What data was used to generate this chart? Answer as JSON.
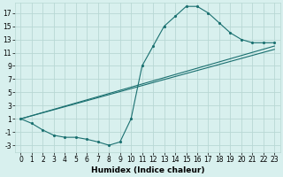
{
  "title": "",
  "xlabel": "Humidex (Indice chaleur)",
  "bg_color": "#d8f0ee",
  "grid_color": "#b8d8d4",
  "line_color": "#1a7070",
  "xlim": [
    -0.5,
    23.5
  ],
  "ylim": [
    -4,
    18.5
  ],
  "xticks": [
    0,
    1,
    2,
    3,
    4,
    5,
    6,
    7,
    8,
    9,
    10,
    11,
    12,
    13,
    14,
    15,
    16,
    17,
    18,
    19,
    20,
    21,
    22,
    23
  ],
  "yticks": [
    -3,
    -1,
    1,
    3,
    5,
    7,
    9,
    11,
    13,
    15,
    17
  ],
  "line1_x": [
    0,
    1,
    2,
    3,
    4,
    5,
    6,
    7,
    8,
    9,
    10,
    11,
    12,
    13,
    14,
    15,
    16,
    17,
    18,
    19,
    20,
    21,
    22,
    23
  ],
  "line1_y": [
    1,
    0.3,
    -0.7,
    -1.5,
    -1.8,
    -1.8,
    -2.1,
    -2.5,
    -3.0,
    -2.5,
    1.0,
    9.0,
    12.0,
    15.0,
    16.5,
    18.0,
    18.0,
    17.0,
    15.5,
    14.0,
    13.0,
    12.5,
    12.5,
    12.5
  ],
  "line2_x": [
    0,
    23
  ],
  "line2_y": [
    1,
    12
  ],
  "line3_x": [
    0,
    23
  ],
  "line3_y": [
    1,
    11.5
  ],
  "fontsize_label": 6.5,
  "fontsize_tick": 5.5
}
